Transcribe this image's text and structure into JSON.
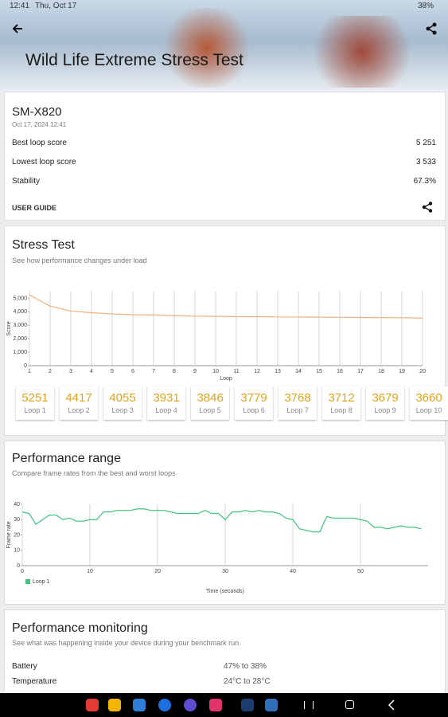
{
  "status_bar": {
    "time": "12:41",
    "date": "Thu, Oct 17",
    "battery": "38%"
  },
  "header": {
    "title": "Wild Life Extreme Stress Test"
  },
  "device": {
    "name": "SM-X820",
    "date": "Oct 17, 2024 12:41",
    "rows": [
      {
        "label": "Best loop score",
        "value": "5 251"
      },
      {
        "label": "Lowest loop score",
        "value": "3 533"
      },
      {
        "label": "Stability",
        "value": "67.3%"
      }
    ],
    "user_guide": "USER GUIDE"
  },
  "stress_test": {
    "title": "Stress Test",
    "subtitle": "See how performance changes under load",
    "chart_data": {
      "type": "line",
      "x": [
        1,
        2,
        3,
        4,
        5,
        6,
        7,
        8,
        9,
        10,
        11,
        12,
        13,
        14,
        15,
        16,
        17,
        18,
        19,
        20
      ],
      "values": [
        5251,
        4417,
        4055,
        3931,
        3846,
        3779,
        3768,
        3712,
        3679,
        3660,
        3640,
        3630,
        3620,
        3610,
        3600,
        3590,
        3580,
        3570,
        3560,
        3533
      ],
      "color": "#f0b27a",
      "xlim": [
        1,
        20
      ],
      "ylim": [
        0,
        5500
      ],
      "xticks": [
        1,
        2,
        3,
        4,
        5,
        6,
        7,
        8,
        9,
        10,
        11,
        12,
        13,
        14,
        15,
        16,
        17,
        18,
        19,
        20
      ],
      "yticks": [
        0,
        {
          "value": 1000,
          "label": "1,000"
        },
        {
          "value": 2000,
          "label": "2,000"
        },
        {
          "value": 3000,
          "label": "3,000"
        },
        {
          "value": 4000,
          "label": "4,000"
        },
        {
          "value": 5000,
          "label": "5,000"
        }
      ],
      "xlabel": "Loop",
      "ylabel": "Score",
      "grid": "x"
    },
    "loop_labels": [
      "Loop 1",
      "Loop 2",
      "Loop 3",
      "Loop 4",
      "Loop 5",
      "Loop 6",
      "Loop 7",
      "Loop 8",
      "Loop 9",
      "Loop 10"
    ]
  },
  "performance_range": {
    "title": "Performance range",
    "subtitle": "Compare frame rates from the best and worst loops",
    "chart_data": {
      "type": "line",
      "x": [
        0,
        1,
        2,
        3,
        4,
        5,
        6,
        7,
        8,
        9,
        10,
        11,
        12,
        13,
        14,
        15,
        16,
        17,
        18,
        19,
        20,
        21,
        22,
        23,
        24,
        25,
        26,
        27,
        28,
        29,
        30,
        31,
        32,
        33,
        34,
        35,
        36,
        37,
        38,
        39,
        40,
        41,
        42,
        43,
        44,
        45,
        46,
        47,
        48,
        49,
        50,
        51,
        52,
        53,
        54,
        55,
        56,
        57,
        58,
        59
      ],
      "series": [
        {
          "name": "Loop 1",
          "color": "#3ec47c",
          "values": [
            35,
            34,
            27,
            30,
            33,
            33,
            30,
            31,
            29,
            29,
            30,
            30,
            35,
            35,
            36,
            36,
            36,
            37,
            37,
            36,
            36,
            36,
            35,
            34,
            34,
            34,
            34,
            36,
            34,
            34,
            30,
            35,
            35,
            36,
            35,
            36,
            35,
            35,
            34,
            31,
            30,
            24,
            23,
            22,
            22,
            32,
            31,
            31,
            31,
            31,
            30,
            29,
            25,
            25,
            24,
            25,
            26,
            25,
            25,
            24
          ]
        }
      ],
      "xlim": [
        0,
        60
      ],
      "ylim": [
        0,
        40
      ],
      "xticks": [
        0,
        10,
        20,
        30,
        40,
        50
      ],
      "yticks": [
        0,
        10,
        20,
        30,
        40
      ],
      "xlabel": "Time (seconds)",
      "ylabel": "Frame rate",
      "grid": "x"
    }
  },
  "monitoring": {
    "title": "Performance monitoring",
    "subtitle": "See what was happening inside your device during your benchmark run.",
    "rows": [
      {
        "label": "Battery",
        "value": "47% to 38%"
      },
      {
        "label": "Temperature",
        "value": "24°C to 28°C"
      }
    ]
  }
}
